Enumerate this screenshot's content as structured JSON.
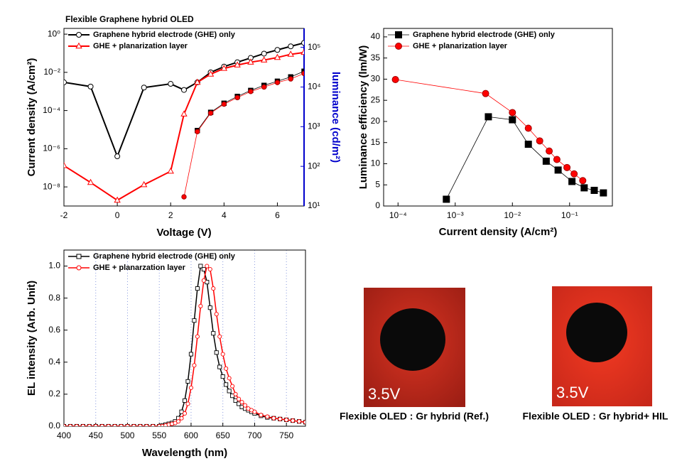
{
  "chart_data": [
    {
      "type": "line",
      "title": "Flexible Graphene hybrid OLED",
      "xlabel": "Voltage (V)",
      "ylabel": "Current density (A/cm²)",
      "y2label": "luminance (cd/m²)",
      "y2color": "#0000cc",
      "xlim": [
        -2,
        7
      ],
      "xticks": [
        -2,
        0,
        2,
        4,
        6
      ],
      "ylog": true,
      "ylim": [
        1e-09,
        2
      ],
      "yticks": [
        {
          "value": 1,
          "label": "10⁰"
        },
        {
          "value": 0.01,
          "label": "10⁻²"
        },
        {
          "value": 0.0001,
          "label": "10⁻⁴"
        },
        {
          "value": 1e-06,
          "label": "10⁻⁶"
        },
        {
          "value": 1e-08,
          "label": "10⁻⁸"
        }
      ],
      "y2log": true,
      "y2lim": [
        10,
        300000
      ],
      "y2ticks": [
        {
          "value": 10,
          "label": "10¹"
        },
        {
          "value": 100,
          "label": "10²"
        },
        {
          "value": 1000,
          "label": "10³"
        },
        {
          "value": 10000,
          "label": "10⁴"
        },
        {
          "value": 100000,
          "label": "10⁵"
        }
      ],
      "legend": "upper left",
      "series": [
        {
          "name": "Graphene hybrid electrode (GHE) only",
          "color": "#000000",
          "marker": "circle",
          "filled": false,
          "x": [
            -2,
            -1,
            0,
            1,
            2,
            2.5,
            3,
            3.5,
            4,
            4.5,
            5,
            5.5,
            6,
            6.5,
            7
          ],
          "values": [
            0.003,
            0.0018,
            4e-07,
            0.0016,
            0.0025,
            0.0012,
            0.003,
            0.01,
            0.02,
            0.034,
            0.057,
            0.096,
            0.15,
            0.23,
            0.35
          ]
        },
        {
          "name": "GHE + planarization layer",
          "color": "#ff0000",
          "marker": "triangle",
          "filled": false,
          "x": [
            -2,
            -1,
            0,
            1,
            2,
            2.5,
            3,
            3.5,
            4,
            4.5,
            5,
            5.5,
            6,
            6.5,
            7
          ],
          "values": [
            1.3e-07,
            1.7e-08,
            2e-09,
            1.3e-08,
            6.6e-08,
            6.5e-05,
            0.003,
            0.008,
            0.016,
            0.024,
            0.034,
            0.044,
            0.06,
            0.088,
            0.11
          ]
        },
        {
          "axis": "y2",
          "color": "#000000",
          "marker": "square",
          "filled": true,
          "x": [
            3,
            3.5,
            4,
            4.5,
            5,
            5.5,
            6,
            6.5,
            7
          ],
          "values": [
            800,
            2300,
            3900,
            5800,
            8200,
            11000,
            14000,
            18000,
            25000
          ]
        },
        {
          "axis": "y2",
          "color": "#ff0000",
          "marker": "circle",
          "filled": true,
          "x": [
            2.5,
            3,
            3.5,
            4,
            4.5,
            5,
            5.5,
            6,
            6.5,
            7
          ],
          "values": [
            17,
            750,
            2200,
            3700,
            5400,
            7700,
            10000,
            13000,
            16000,
            22000
          ]
        }
      ]
    },
    {
      "type": "line",
      "xlabel": "Current density (A/cm²)",
      "ylabel": "Luminance efficiency (lm/W)",
      "xlog": true,
      "xlim": [
        5.6e-05,
        0.56
      ],
      "xticks": [
        {
          "value": 0.0001,
          "label": "10⁻⁴"
        },
        {
          "value": 0.001,
          "label": "10⁻³"
        },
        {
          "value": 0.01,
          "label": "10⁻²"
        },
        {
          "value": 0.1,
          "label": "10⁻¹"
        }
      ],
      "ylim": [
        0,
        42
      ],
      "yticks": [
        0,
        5,
        10,
        15,
        20,
        25,
        30,
        35,
        40
      ],
      "legend": "upper left",
      "series": [
        {
          "name": "Graphene hybrid electrode (GHE) only",
          "color": "#000000",
          "marker": "square",
          "filled": true,
          "x": [
            0.0007,
            0.0038,
            0.01,
            0.019,
            0.039,
            0.063,
            0.11,
            0.18,
            0.27,
            0.39
          ],
          "values": [
            1.6,
            21.1,
            20.4,
            14.6,
            10.6,
            8.5,
            5.8,
            4.3,
            3.7,
            3.1
          ]
        },
        {
          "name": "GHE + planarization layer",
          "color": "#ff0000",
          "marker": "circle",
          "filled": true,
          "x": [
            9e-05,
            0.0034,
            0.01,
            0.019,
            0.03,
            0.044,
            0.06,
            0.09,
            0.12,
            0.17
          ],
          "values": [
            29.9,
            26.6,
            22.1,
            18.4,
            15.4,
            13.0,
            11.0,
            9.1,
            7.6,
            6.0
          ]
        }
      ]
    },
    {
      "type": "line",
      "xlabel": "Wavelength (nm)",
      "ylabel": "EL intensity (Arb. Unit)",
      "xlim": [
        400,
        780
      ],
      "xticks": [
        400,
        450,
        500,
        550,
        600,
        650,
        700,
        750
      ],
      "ylim": [
        0,
        1.1
      ],
      "yticks": [
        {
          "value": 0,
          "label": "0.0"
        },
        0.2,
        0.4,
        0.6,
        0.8,
        {
          "value": 1,
          "label": "1.0"
        }
      ],
      "grid": "x",
      "legend": "upper left",
      "x": [
        400,
        410,
        420,
        430,
        440,
        450,
        460,
        470,
        480,
        490,
        500,
        510,
        520,
        530,
        540,
        550,
        555,
        560,
        565,
        570,
        575,
        580,
        585,
        590,
        595,
        600,
        605,
        610,
        615,
        620,
        625,
        630,
        635,
        640,
        645,
        650,
        655,
        660,
        665,
        670,
        675,
        680,
        685,
        690,
        695,
        700,
        710,
        720,
        730,
        740,
        750,
        760,
        770,
        780
      ],
      "series": [
        {
          "name": "Graphene hybrid electrode (GHE) only",
          "color": "#000000",
          "marker": "square",
          "filled": false,
          "values": [
            0,
            0,
            0,
            0,
            0,
            0,
            0,
            0,
            0,
            0,
            0,
            0,
            0,
            0,
            0,
            0,
            0.005,
            0.01,
            0.015,
            0.02,
            0.03,
            0.05,
            0.09,
            0.16,
            0.28,
            0.45,
            0.66,
            0.86,
            1.0,
            0.98,
            0.9,
            0.74,
            0.58,
            0.46,
            0.37,
            0.31,
            0.26,
            0.22,
            0.19,
            0.16,
            0.14,
            0.12,
            0.11,
            0.1,
            0.09,
            0.08,
            0.065,
            0.055,
            0.05,
            0.045,
            0.04,
            0.035,
            0.03,
            0.025
          ]
        },
        {
          "name": "GHE + planarzation layer",
          "color": "#ff0000",
          "marker": "circle",
          "filled": false,
          "values": [
            0,
            0,
            0,
            0,
            0,
            0,
            0,
            0,
            0,
            0,
            0,
            0,
            0,
            0,
            0,
            0,
            0,
            0.005,
            0.01,
            0.015,
            0.02,
            0.03,
            0.05,
            0.08,
            0.14,
            0.24,
            0.38,
            0.56,
            0.75,
            0.91,
            1.0,
            0.98,
            0.86,
            0.7,
            0.56,
            0.45,
            0.36,
            0.3,
            0.25,
            0.2,
            0.17,
            0.15,
            0.13,
            0.11,
            0.1,
            0.09,
            0.07,
            0.06,
            0.05,
            0.045,
            0.04,
            0.035,
            0.03,
            0.025
          ]
        }
      ]
    }
  ],
  "photos": [
    {
      "label": "3.5V",
      "caption": "Flexible OLED : Gr hybrid (Ref.)"
    },
    {
      "label": "3.5V",
      "caption": "Flexible OLED : Gr hybrid+ HIL"
    }
  ]
}
